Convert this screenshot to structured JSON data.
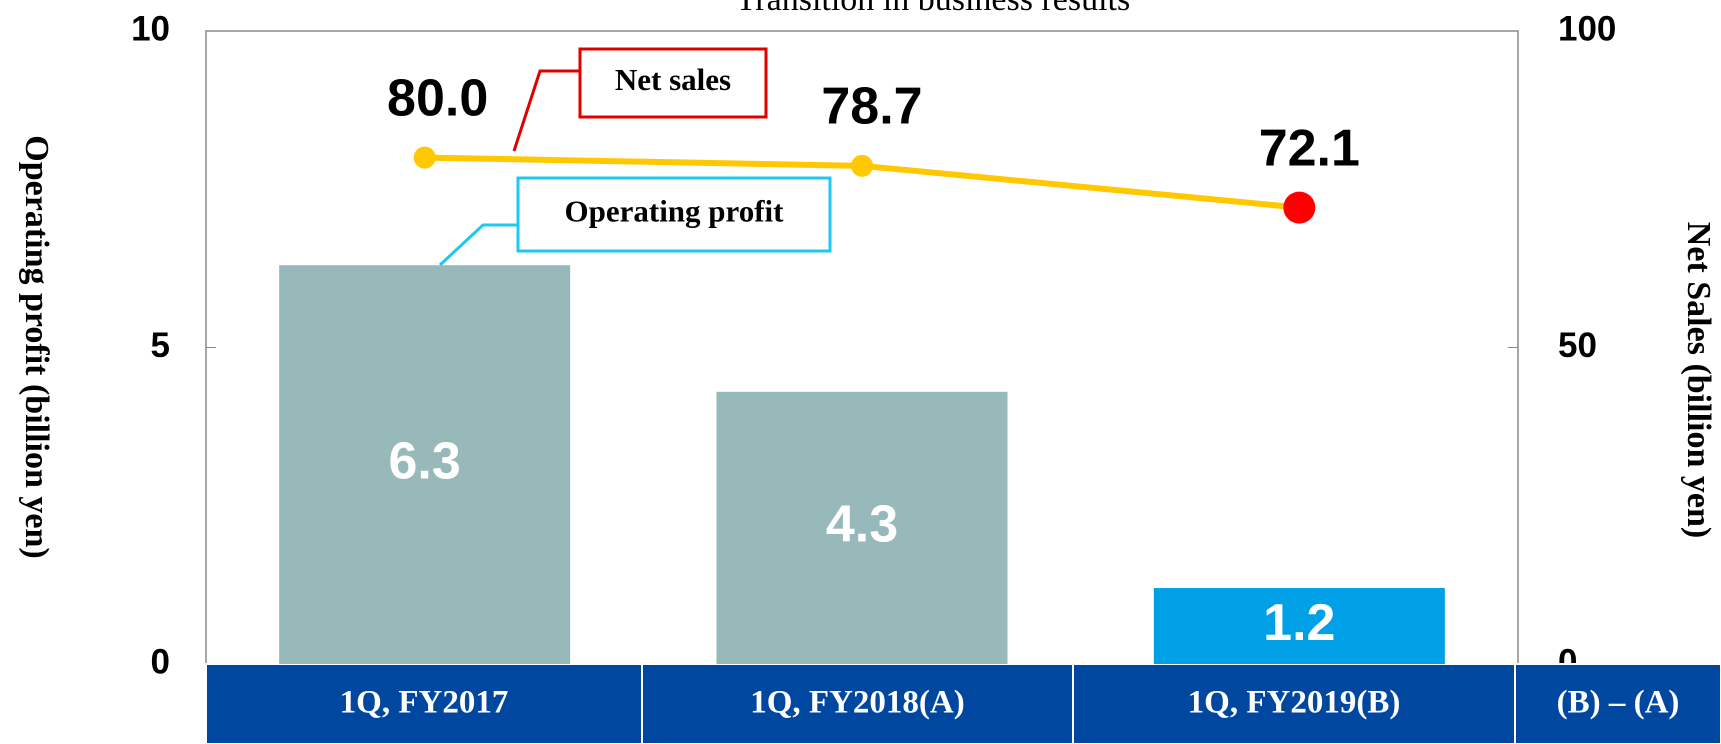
{
  "chart_data": {
    "type": "bar_line",
    "title": "Transition in business results",
    "y_label": "Operating profit (billion yen)",
    "y2_label": "Net Sales (billion yen)",
    "categories": [
      "1Q, FY2017",
      "1Q, FY2018(A)",
      "1Q, FY2019(B)"
    ],
    "ylim": [
      0,
      10
    ],
    "yticks": [
      0,
      5,
      10
    ],
    "y2lim": [
      0,
      100
    ],
    "y2ticks": [
      0,
      50,
      100
    ],
    "grid": false,
    "series": [
      {
        "name": "Operating profit",
        "type": "bar",
        "color": "#98b9b9",
        "colors": [
          "#98b9b9",
          "#98b9b9",
          "#00a0e6"
        ],
        "values": [
          6.3,
          4.3,
          1.2
        ]
      },
      {
        "name": "Net sales",
        "type": "line",
        "axis": "y2",
        "color": "#ffc800",
        "marker_colors": [
          "#ffc800",
          "#ffc800",
          "#ff0000"
        ],
        "values": [
          80,
          78.7,
          72.1
        ],
        "value_labels": [
          "80.0",
          "78.7",
          "72.1"
        ]
      }
    ]
  },
  "table": {
    "extra_header": "(B) – (A)"
  }
}
